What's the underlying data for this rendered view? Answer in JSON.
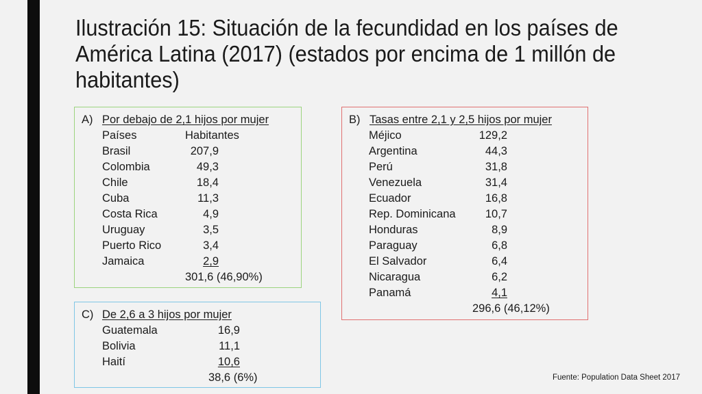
{
  "title": "Ilustración 15: Situación de la fecundidad en los países de América Latina (2017) (estados por encima de 1 millón de habitantes)",
  "box_a": {
    "marker": "A)",
    "heading": "Por debajo de 2,1 hijos por mujer",
    "col_country": "Países",
    "col_population": "Habitantes",
    "rows": [
      {
        "country": "Brasil",
        "value": "207,9"
      },
      {
        "country": "Colombia",
        "value": "49,3"
      },
      {
        "country": "Chile",
        "value": "18,4"
      },
      {
        "country": "Cuba",
        "value": "11,3"
      },
      {
        "country": "Costa Rica",
        "value": "4,9"
      },
      {
        "country": "Uruguay",
        "value": "3,5"
      },
      {
        "country": "Puerto Rico",
        "value": "3,4"
      },
      {
        "country": "Jamaica",
        "value": "2,9"
      }
    ],
    "total": "301,6 (46,90%)"
  },
  "box_b": {
    "marker": "B)",
    "heading": "Tasas entre 2,1 y 2,5 hijos por mujer",
    "rows": [
      {
        "country": "Méjico",
        "value": "129,2"
      },
      {
        "country": "Argentina",
        "value": "44,3"
      },
      {
        "country": "Perú",
        "value": "31,8"
      },
      {
        "country": "Venezuela",
        "value": "31,4"
      },
      {
        "country": "Ecuador",
        "value": "16,8"
      },
      {
        "country": "Rep. Dominicana",
        "value": "10,7"
      },
      {
        "country": "Honduras",
        "value": "8,9"
      },
      {
        "country": "Paraguay",
        "value": "6,8"
      },
      {
        "country": "El Salvador",
        "value": "6,4"
      },
      {
        "country": "Nicaragua",
        "value": "6,2"
      },
      {
        "country": "Panamá",
        "value": "4,1"
      }
    ],
    "total": "296,6 (46,12%)"
  },
  "box_c": {
    "marker": "C)",
    "heading": "De 2,6 a 3 hijos por mujer",
    "rows": [
      {
        "country": "Guatemala",
        "value": "16,9"
      },
      {
        "country": "Bolivia",
        "value": "11,1"
      },
      {
        "country": "Haití",
        "value": "10,6"
      }
    ],
    "total": "38,6 (6%)"
  },
  "source": "Fuente: Population Data Sheet 2017"
}
